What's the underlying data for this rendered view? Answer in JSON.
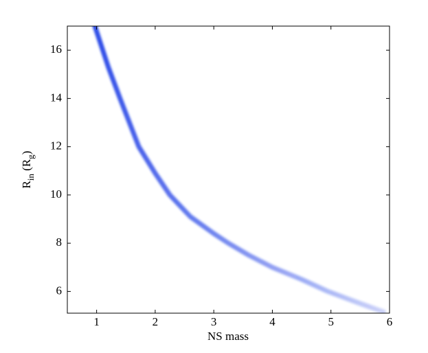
{
  "chart_data": {
    "type": "line",
    "x_label": "NS mass",
    "y_label": [
      "R",
      "in",
      " (R",
      "g",
      ")"
    ],
    "x": [
      0.97,
      1.2,
      1.4,
      1.72,
      2,
      2.25,
      2.6,
      3,
      3.25,
      3.6,
      4,
      4.5,
      4.95,
      5.5,
      5.9
    ],
    "series": [
      {
        "color": "#1f3fe6",
        "values": [
          17,
          15.3,
          14,
          12,
          10.9,
          10,
          9.1,
          8.4,
          8,
          7.5,
          7,
          6.5,
          6,
          5.5,
          5.15
        ]
      }
    ],
    "xlim": [
      0.5,
      6
    ],
    "xticks": [
      1,
      2,
      3,
      4,
      5,
      6
    ],
    "ylim": [
      5.1,
      17
    ],
    "yticks": [
      6,
      8,
      10,
      12,
      14,
      16
    ]
  }
}
